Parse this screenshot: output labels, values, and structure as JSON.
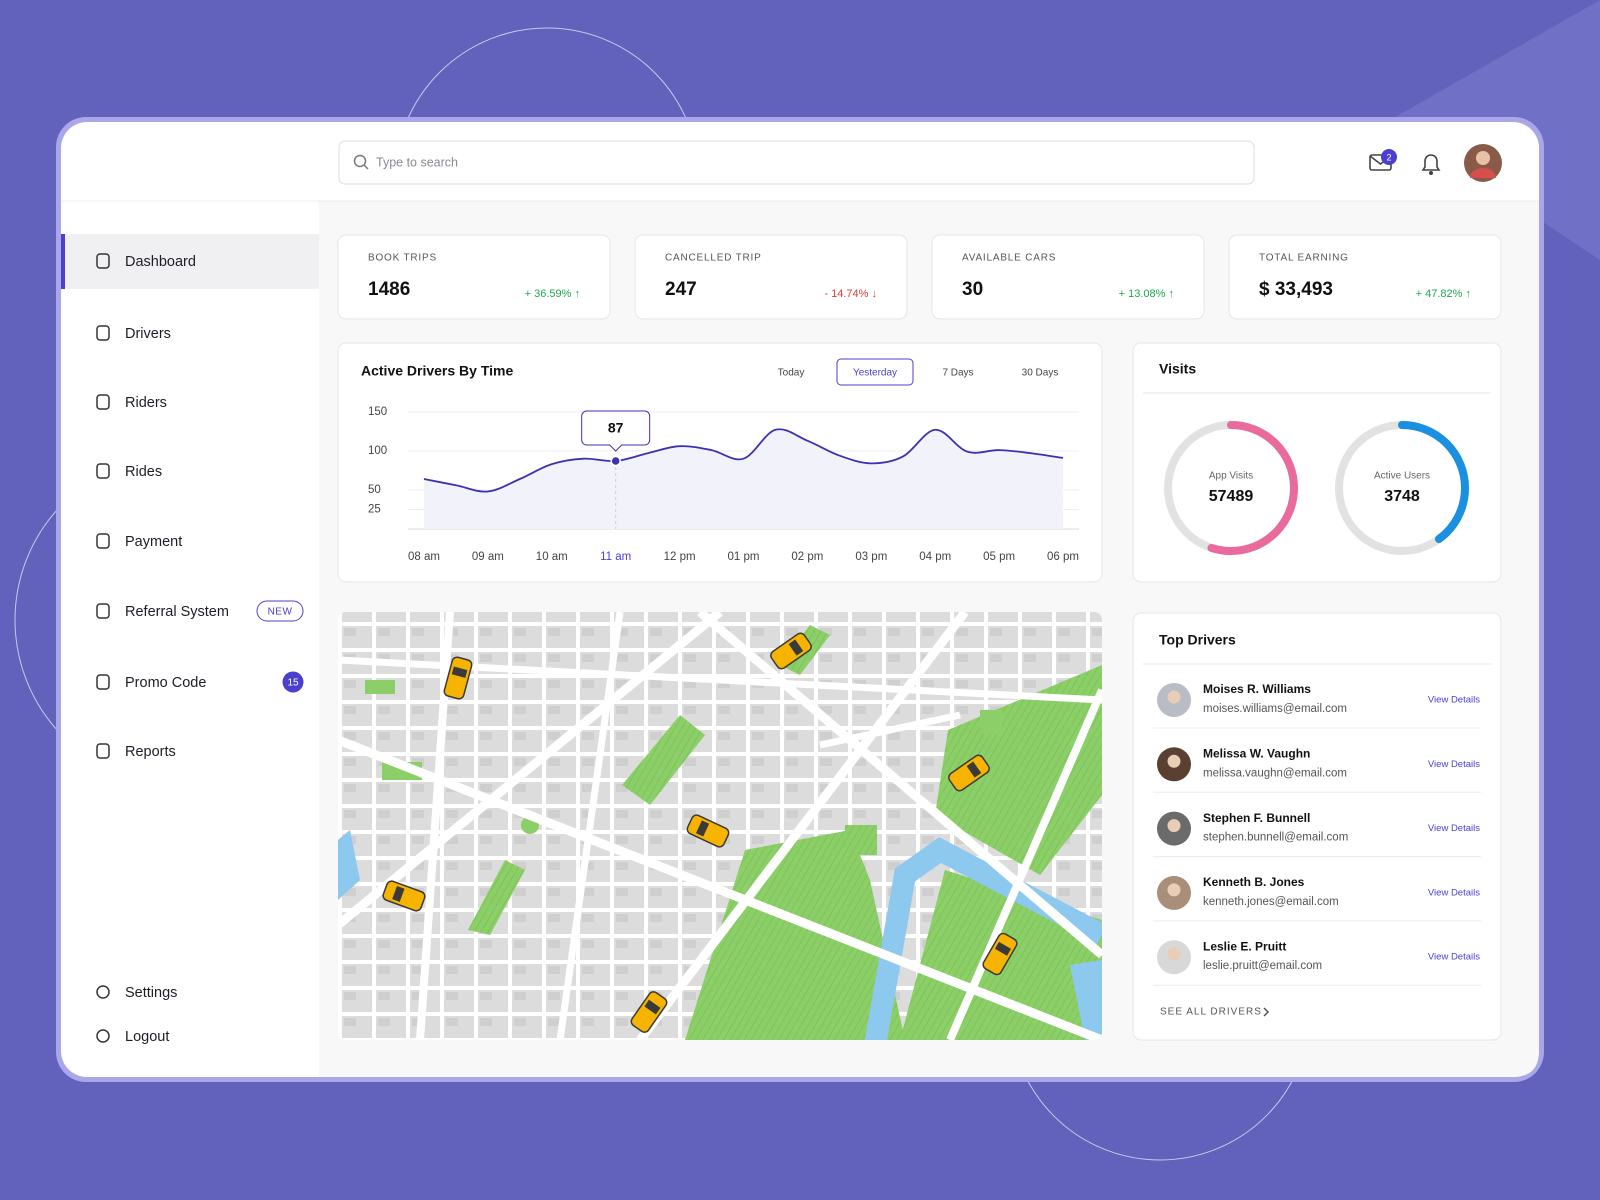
{
  "header": {
    "search_placeholder": "Type to search",
    "mail_count": 2
  },
  "sidebar": {
    "items": [
      {
        "label": "Dashboard",
        "active": true
      },
      {
        "label": "Drivers"
      },
      {
        "label": "Riders"
      },
      {
        "label": "Rides"
      },
      {
        "label": "Payment"
      },
      {
        "label": "Referral System",
        "badge": "NEW"
      },
      {
        "label": "Promo Code",
        "count": 15
      },
      {
        "label": "Reports"
      }
    ],
    "footer": [
      {
        "label": "Settings"
      },
      {
        "label": "Logout"
      }
    ]
  },
  "stats": [
    {
      "label": "BOOK TRIPS",
      "value": 1486,
      "change": "+ 36.59% ↑",
      "trend": "up"
    },
    {
      "label": "CANCELLED TRIP",
      "value": 247,
      "change": "- 14.74% ↓",
      "trend": "down"
    },
    {
      "label": "AVAILABLE CARS",
      "value": 30,
      "change": "+ 13.08% ↑",
      "trend": "up"
    },
    {
      "label": "TOTAL EARNING",
      "value": "$ 33,493",
      "change": "+ 47.82% ↑",
      "trend": "up"
    }
  ],
  "chart_data": {
    "type": "line",
    "title": "Active Drivers By Time",
    "filters": [
      "Today",
      "Yesterday",
      "7 Days",
      "30 Days"
    ],
    "active_filter": 1,
    "x": [
      8,
      8.5,
      9,
      9.5,
      10,
      10.5,
      11,
      11.5,
      12,
      12.5,
      13,
      13.5,
      14,
      14.5,
      15,
      15.5,
      16,
      16.5,
      17,
      17.5,
      18
    ],
    "values": [
      64,
      56,
      48,
      64,
      83,
      90,
      87,
      97,
      106,
      101,
      90,
      127,
      113,
      94,
      84,
      93,
      127,
      99,
      101,
      97,
      91
    ],
    "color": "#3d31b3",
    "xlim": [
      7.75,
      18.25
    ],
    "xticks": [
      {
        "value": 8,
        "label": "08 am"
      },
      {
        "value": 9,
        "label": "09 am"
      },
      {
        "value": 10,
        "label": "10 am"
      },
      {
        "value": 11,
        "label": "11 am"
      },
      {
        "value": 12,
        "label": "12 pm"
      },
      {
        "value": 13,
        "label": "01 pm"
      },
      {
        "value": 14,
        "label": "02 pm"
      },
      {
        "value": 15,
        "label": "03 pm"
      },
      {
        "value": 16,
        "label": "04 pm"
      },
      {
        "value": 17,
        "label": "05 pm"
      },
      {
        "value": 18,
        "label": "06 pm"
      }
    ],
    "highlight_x": 11,
    "ylim": [
      0,
      160
    ],
    "yticks": [
      25,
      50,
      100,
      150
    ],
    "grid": true,
    "tooltip": {
      "x": 11,
      "value": 87
    }
  },
  "visits": {
    "title": "Visits",
    "items": [
      {
        "label": "App Visits",
        "value": 57489,
        "percent": 55,
        "color": "#e96a9c"
      },
      {
        "label": "Active Users",
        "value": 3748,
        "percent": 40,
        "color": "#1b8fe0"
      }
    ]
  },
  "top_drivers": {
    "title": "Top Drivers",
    "action_label": "View Details",
    "footer": "SEE ALL DRIVERS",
    "drivers": [
      {
        "name": "Moises R. Williams",
        "email": "moises.williams@email.com"
      },
      {
        "name": "Melissa W. Vaughn",
        "email": "melissa.vaughn@email.com"
      },
      {
        "name": "Stephen F. Bunnell",
        "email": "stephen.bunnell@email.com"
      },
      {
        "name": "Kenneth B. Jones",
        "email": "kenneth.jones@email.com"
      },
      {
        "name": "Leslie E. Pruitt",
        "email": "leslie.pruitt@email.com"
      }
    ]
  }
}
